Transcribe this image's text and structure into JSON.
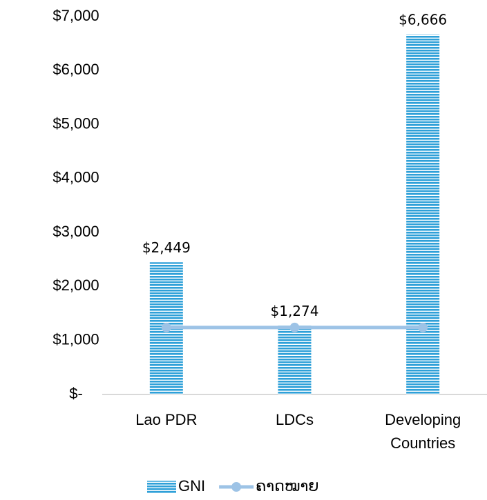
{
  "chart_data": {
    "type": "bar",
    "categories": [
      "Lao PDR",
      "LDCs",
      "Developing Countries"
    ],
    "series": [
      {
        "name": "GNI",
        "color": "#2ea0d8",
        "values": [
          2449,
          1274,
          6666
        ],
        "value_labels": [
          "$2,449",
          "$1,274",
          "$6,666"
        ]
      },
      {
        "name": "ຄາດໝາຍ",
        "type": "line",
        "color": "#9dc3e6",
        "values": [
          1240,
          1240,
          1240
        ]
      }
    ],
    "ylim": [
      0,
      7000
    ],
    "yticks": [
      {
        "value": 0,
        "label": "$-"
      },
      {
        "value": 1000,
        "label": "$1,000"
      },
      {
        "value": 2000,
        "label": "$2,000"
      },
      {
        "value": 3000,
        "label": "$3,000"
      },
      {
        "value": 4000,
        "label": "$4,000"
      },
      {
        "value": 5000,
        "label": "$5,000"
      },
      {
        "value": 6000,
        "label": "$6,000"
      },
      {
        "value": 7000,
        "label": "$7,000"
      }
    ],
    "grid": false,
    "legend": "bottom"
  }
}
